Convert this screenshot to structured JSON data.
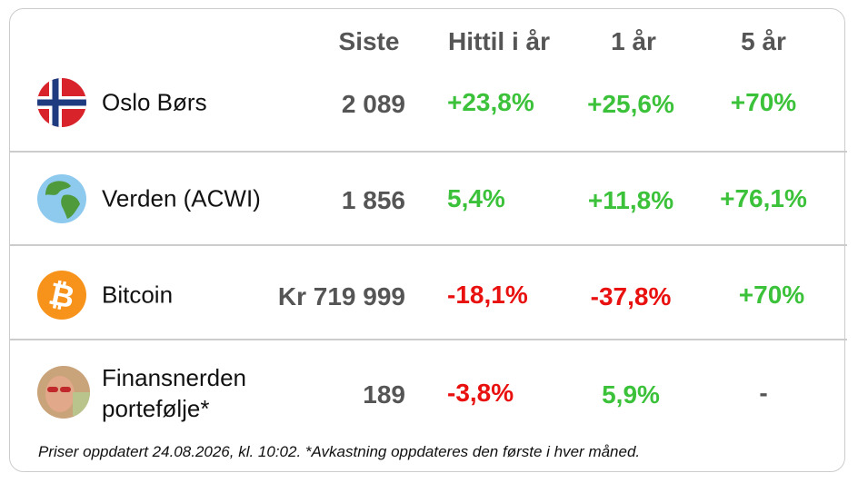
{
  "header": {
    "columns": [
      "Siste",
      "Hittil i år",
      "1 år",
      "5 år"
    ]
  },
  "rows": [
    {
      "name": "Oslo Børs",
      "siste": "2 089",
      "ytd": "+23,8%",
      "y1": "+25,6%",
      "y5": "+70%"
    },
    {
      "name": "Verden (ACWI)",
      "siste": "1 856",
      "ytd": "5,4%",
      "y1": "+11,8%",
      "y5": "+76,1%"
    },
    {
      "name": "Bitcoin",
      "siste": "Kr 719 999",
      "ytd": "-18,1%",
      "y1": "-37,8%",
      "y5": "+70%"
    },
    {
      "name": "Finansnerden portefølje*",
      "siste": "189",
      "ytd": "-3,8%",
      "y1": "5,9%",
      "y5": "-"
    }
  ],
  "footer": "Priser oppdatert 24.08.2026, kl. 10:02. *Avkastning oppdateres den første i hver måned."
}
